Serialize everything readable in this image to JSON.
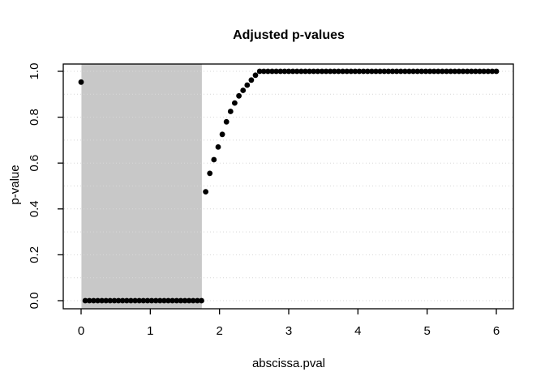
{
  "window": {
    "background": "#ffffff"
  },
  "chart_data": {
    "type": "scatter",
    "title": "Adjusted p-values",
    "xlabel": "abscissa.pval",
    "ylabel": "p-value",
    "xlim": [
      -0.24,
      6.24
    ],
    "ylim": [
      -0.04,
      1.04
    ],
    "x_ticks": [
      0,
      1,
      2,
      3,
      4,
      5,
      6
    ],
    "x_tick_labels": [
      "0",
      "1",
      "2",
      "3",
      "4",
      "5",
      "6"
    ],
    "y_ticks": [
      0.0,
      0.2,
      0.4,
      0.6,
      0.8,
      1.0
    ],
    "y_tick_labels": [
      "0.0",
      "0.2",
      "0.4",
      "0.6",
      "0.8",
      "1.0"
    ],
    "grid": {
      "orientation": "horizontal",
      "values": [
        0.0,
        0.1,
        0.2,
        0.3,
        0.4,
        0.5,
        0.6,
        0.7,
        0.8,
        0.9,
        1.0
      ],
      "line_style": "dotted",
      "color": "#d7d7d7"
    },
    "shaded_region": {
      "x_from": 0.005,
      "x_to": 1.745,
      "color": "#c8c8c8"
    },
    "points_style": {
      "color": "#000000",
      "radius_px": 3.4,
      "shape": "filled-circle"
    },
    "legend": null,
    "series_segments": [
      {
        "kind": "single",
        "x": 0.0,
        "y": 0.953
      },
      {
        "kind": "constant",
        "x_from": 0.06,
        "x_to": 1.74,
        "step": 0.06,
        "y": 0.0
      },
      {
        "kind": "values",
        "x_from": 1.8,
        "step": 0.06,
        "y_values": [
          0.475,
          0.555,
          0.615,
          0.67,
          0.725,
          0.78,
          0.825,
          0.862,
          0.893,
          0.917,
          0.94,
          0.962,
          0.983
        ]
      },
      {
        "kind": "constant",
        "x_from": 2.58,
        "x_to": 6.0,
        "step": 0.06,
        "y": 1.0
      }
    ]
  },
  "colors": {
    "foreground": "#000000",
    "shaded_band": "#c8c8c8",
    "gridline": "#d7d7d7",
    "plot_border": "#000000"
  }
}
